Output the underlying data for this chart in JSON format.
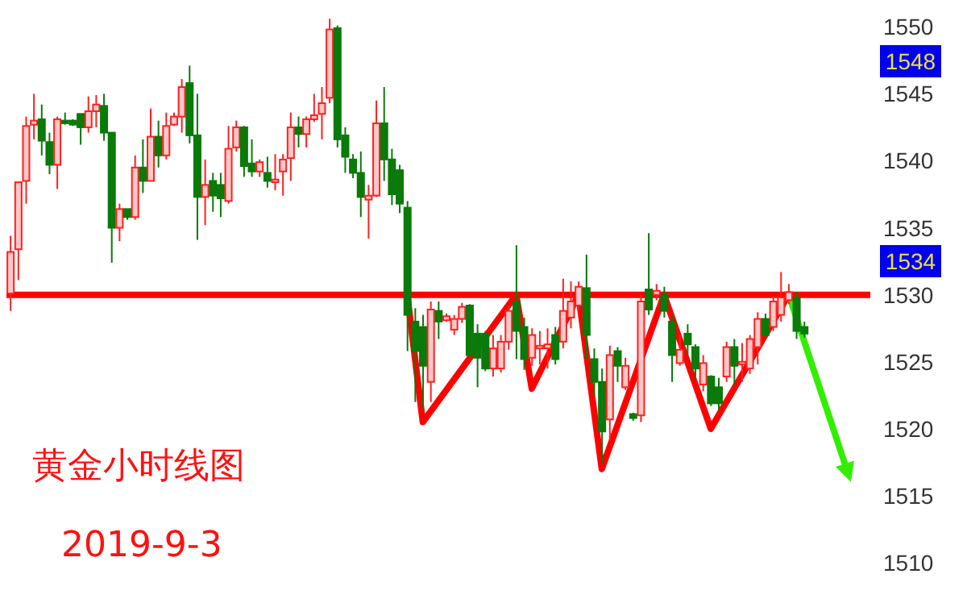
{
  "chart_data": {
    "type": "candlestick",
    "categories": [
      null,
      null,
      null,
      null,
      null,
      null,
      null,
      null,
      null,
      null,
      null,
      null,
      null,
      null,
      null,
      null,
      null,
      null,
      null,
      null,
      null,
      null,
      null,
      null,
      null,
      null,
      null,
      null,
      null,
      null,
      null,
      null,
      null,
      null,
      null,
      null,
      null,
      null,
      null,
      null,
      null,
      null,
      null,
      null,
      null,
      null,
      null,
      null,
      null,
      null,
      null,
      null,
      null,
      null,
      null,
      null,
      null,
      null,
      null,
      null,
      null,
      null,
      null,
      null,
      null,
      null,
      null,
      null,
      null,
      null,
      null,
      null,
      null,
      null,
      null,
      null,
      null,
      null,
      null,
      null,
      null,
      null,
      null,
      null,
      null,
      null,
      null,
      null,
      null,
      null,
      null,
      null,
      null,
      null,
      null,
      null,
      null,
      null,
      null,
      null,
      null,
      null,
      null,
      null,
      null,
      null,
      null,
      null,
      null,
      null,
      null
    ],
    "ohlc": [
      [
        1530.1,
        1534.4,
        1528.8,
        1533.2
      ],
      [
        1533.4,
        1538.4,
        1531.1,
        1538.4
      ],
      [
        1538.5,
        1543.3,
        1536.8,
        1542.6
      ],
      [
        1542.7,
        1545.0,
        1541.6,
        1543.0
      ],
      [
        1543.1,
        1544.2,
        1540.4,
        1541.5
      ],
      [
        1541.4,
        1542.1,
        1539.0,
        1539.7
      ],
      [
        1539.7,
        1543.3,
        1537.9,
        1543.1
      ],
      [
        1543.0,
        1543.6,
        1542.7,
        1542.8
      ],
      [
        1543.0,
        1543.1,
        1542.6,
        1542.7
      ],
      [
        1543.5,
        1543.5,
        1541.2,
        1542.5
      ],
      [
        1542.5,
        1544.8,
        1542.1,
        1543.7
      ],
      [
        1543.7,
        1544.9,
        1542.5,
        1544.2
      ],
      [
        1544.1,
        1545.0,
        1541.5,
        1542.1
      ],
      [
        1542.1,
        1542.1,
        1532.4,
        1535.0
      ],
      [
        1535.0,
        1536.8,
        1534.0,
        1536.4
      ],
      [
        1536.4,
        1536.4,
        1535.6,
        1535.8
      ],
      [
        1535.8,
        1540.4,
        1535.6,
        1539.5
      ],
      [
        1539.5,
        1541.6,
        1537.6,
        1538.5
      ],
      [
        1538.5,
        1543.9,
        1538.5,
        1541.8
      ],
      [
        1541.8,
        1543.0,
        1539.5,
        1540.4
      ],
      [
        1540.4,
        1543.6,
        1540.1,
        1542.6
      ],
      [
        1542.7,
        1543.6,
        1542.6,
        1543.3
      ],
      [
        1543.3,
        1546.1,
        1542.1,
        1545.5
      ],
      [
        1545.8,
        1547.1,
        1541.3,
        1541.9
      ],
      [
        1541.9,
        1545.0,
        1534.1,
        1537.3
      ],
      [
        1537.3,
        1540.1,
        1535.2,
        1538.2
      ],
      [
        1538.5,
        1539.1,
        1536.2,
        1537.4
      ],
      [
        1538.2,
        1539.1,
        1535.8,
        1537.2
      ],
      [
        1537.0,
        1542.6,
        1536.8,
        1540.9
      ],
      [
        1541.0,
        1543.0,
        1540.7,
        1542.5
      ],
      [
        1542.5,
        1542.6,
        1538.8,
        1539.6
      ],
      [
        1539.8,
        1541.6,
        1538.8,
        1539.2
      ],
      [
        1539.2,
        1540.1,
        1538.8,
        1539.9
      ],
      [
        1539.1,
        1540.3,
        1538.0,
        1538.5
      ],
      [
        1538.4,
        1540.5,
        1537.8,
        1538.6
      ],
      [
        1539.2,
        1540.5,
        1537.4,
        1540.1
      ],
      [
        1540.2,
        1543.6,
        1538.5,
        1542.5
      ],
      [
        1542.5,
        1543.3,
        1541.0,
        1542.0
      ],
      [
        1542.0,
        1543.3,
        1541.0,
        1543.1
      ],
      [
        1543.1,
        1545.0,
        1542.9,
        1543.4
      ],
      [
        1543.5,
        1545.5,
        1541.6,
        1544.3
      ],
      [
        1544.7,
        1550.6,
        1544.3,
        1549.8
      ],
      [
        1549.9,
        1550.1,
        1541.0,
        1541.6
      ],
      [
        1541.9,
        1542.5,
        1539.1,
        1540.3
      ],
      [
        1540.1,
        1540.5,
        1538.7,
        1539.1
      ],
      [
        1539.1,
        1540.7,
        1535.8,
        1537.3
      ],
      [
        1537.1,
        1538.2,
        1534.2,
        1537.4
      ],
      [
        1537.4,
        1544.5,
        1537.3,
        1542.8
      ],
      [
        1542.8,
        1545.5,
        1538.5,
        1540.1
      ],
      [
        1540.1,
        1540.9,
        1536.7,
        1537.5
      ],
      [
        1539.3,
        1539.7,
        1536.1,
        1536.8
      ],
      [
        1536.5,
        1537.0,
        1525.8,
        1528.5
      ],
      [
        1528.0,
        1529.0,
        1522.0,
        1525.8
      ],
      [
        1527.6,
        1528.5,
        1521.5,
        1524.7
      ],
      [
        1523.5,
        1529.5,
        1522.0,
        1528.9
      ],
      [
        1528.8,
        1529.5,
        1526.7,
        1528.0
      ],
      [
        1528.1,
        1528.6,
        1528.0,
        1528.4
      ],
      [
        1527.4,
        1528.5,
        1527.0,
        1528.2
      ],
      [
        1528.2,
        1529.4,
        1527.9,
        1529.1
      ],
      [
        1529.2,
        1529.3,
        1525.2,
        1525.5
      ],
      [
        1527.1,
        1527.8,
        1523.1,
        1525.3
      ],
      [
        1527.1,
        1527.3,
        1524.3,
        1524.5
      ],
      [
        1524.5,
        1527.0,
        1523.9,
        1526.0
      ],
      [
        1524.5,
        1527.0,
        1524.2,
        1526.5
      ],
      [
        1526.5,
        1529.2,
        1525.9,
        1528.8
      ],
      [
        1529.5,
        1533.7,
        1525.2,
        1527.3
      ],
      [
        1527.6,
        1528.3,
        1524.4,
        1525.2
      ],
      [
        1525.3,
        1527.5,
        1524.7,
        1527.0
      ],
      [
        1526.0,
        1527.3,
        1524.8,
        1526.2
      ],
      [
        1526.0,
        1527.5,
        1524.5,
        1526.3
      ],
      [
        1527.0,
        1527.6,
        1524.8,
        1525.2
      ],
      [
        1526.5,
        1531.2,
        1526.0,
        1528.8
      ],
      [
        1528.3,
        1531.0,
        1527.5,
        1529.5
      ],
      [
        1529.2,
        1531.0,
        1528.9,
        1530.6
      ],
      [
        1530.5,
        1533.0,
        1525.2,
        1527.0
      ],
      [
        1525.2,
        1526.0,
        1522.5,
        1523.5
      ],
      [
        1523.5,
        1524.5,
        1517.4,
        1519.8
      ],
      [
        1520.7,
        1526.2,
        1519.1,
        1525.5
      ],
      [
        1525.8,
        1526.1,
        1523.5,
        1524.7
      ],
      [
        1523.1,
        1525.3,
        1522.9,
        1524.7
      ],
      [
        1521.1,
        1521.2,
        1520.6,
        1520.8
      ],
      [
        1521.0,
        1530.0,
        1520.5,
        1529.5
      ],
      [
        1530.4,
        1534.6,
        1528.5,
        1528.9
      ],
      [
        1530.0,
        1530.8,
        1529.6,
        1530.3
      ],
      [
        1530.0,
        1530.6,
        1528.3,
        1528.8
      ],
      [
        1528.0,
        1528.5,
        1523.5,
        1525.5
      ],
      [
        1524.9,
        1527.0,
        1524.7,
        1525.9
      ],
      [
        1527.1,
        1527.8,
        1525.5,
        1526.3
      ],
      [
        1526.1,
        1526.3,
        1523.7,
        1524.5
      ],
      [
        1523.3,
        1525.5,
        1522.8,
        1524.9
      ],
      [
        1523.9,
        1524.0,
        1521.7,
        1521.9
      ],
      [
        1523.1,
        1523.8,
        1521.4,
        1521.9
      ],
      [
        1523.9,
        1526.5,
        1523.5,
        1526.1
      ],
      [
        1526.1,
        1526.7,
        1523.3,
        1524.7
      ],
      [
        1524.8,
        1526.4,
        1523.5,
        1525.0
      ],
      [
        1524.5,
        1527.0,
        1524.1,
        1526.7
      ],
      [
        1526.1,
        1528.7,
        1524.8,
        1528.2
      ],
      [
        1528.2,
        1528.6,
        1526.7,
        1527.0
      ],
      [
        1527.6,
        1529.9,
        1527.3,
        1529.5
      ],
      [
        1528.5,
        1531.7,
        1528.0,
        1529.8
      ],
      [
        1529.6,
        1530.8,
        1529.3,
        1530.2
      ],
      [
        1529.8,
        1530.2,
        1526.7,
        1527.3
      ],
      [
        1527.6,
        1528.0,
        1526.8,
        1527.1
      ],
      null,
      null,
      null,
      null,
      null,
      null,
      null,
      null
    ],
    "series": [
      {
        "type": "line",
        "color": "#ff0000",
        "values": [
          null,
          null,
          null,
          null,
          null,
          null,
          null,
          null,
          null,
          null,
          null,
          null,
          null,
          null,
          null,
          null,
          null,
          null,
          null,
          null,
          null,
          null,
          null,
          null,
          null,
          null,
          null,
          null,
          null,
          null,
          null,
          null,
          null,
          null,
          null,
          null,
          null,
          null,
          null,
          null,
          null,
          null,
          null,
          null,
          null,
          null,
          null,
          null,
          null,
          null,
          null,
          1530,
          null,
          1520.5,
          null,
          null,
          null,
          null,
          null,
          null,
          null,
          null,
          null,
          null,
          null,
          1530,
          null,
          1523,
          null,
          null,
          null,
          null,
          null,
          1530,
          null,
          null,
          1517,
          null,
          null,
          null,
          null,
          null,
          null,
          null,
          1530,
          null,
          null,
          null,
          null,
          null,
          1520,
          null,
          null,
          null,
          null,
          null,
          null,
          null,
          null,
          null,
          1530,
          null,
          null,
          null,
          null,
          null,
          null,
          null,
          null,
          null,
          null
        ]
      }
    ],
    "ylim": [
      1507,
      1552
    ],
    "yticks": [
      1510,
      1515,
      1520,
      1525,
      1530,
      1535,
      1540,
      1545,
      1550
    ],
    "tick_labels": "y",
    "grid": false,
    "ref_lines": [
      {
        "axis": "y",
        "value": 1530,
        "color": "#ff0000"
      }
    ],
    "annotations": [
      "黄金小时线图",
      "2019-9-3",
      "1548",
      "1534"
    ]
  }
}
